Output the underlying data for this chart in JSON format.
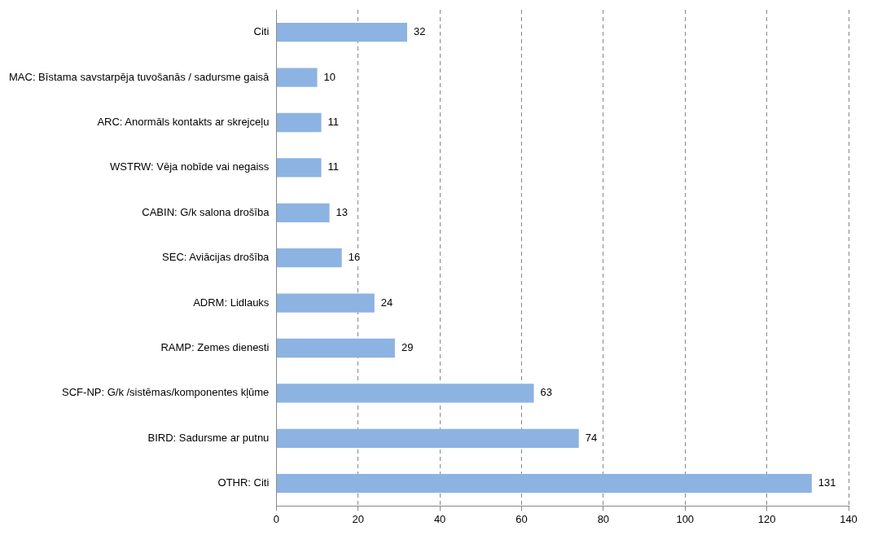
{
  "chart_data": {
    "type": "bar",
    "orientation": "horizontal",
    "categories": [
      "Citi",
      "MAC: Bīstama savstarpēja tuvošanās / sadursme gaisā",
      "ARC: Anormāls kontakts ar skrejceļu",
      "WSTRW: Vēja nobīde vai negaiss",
      "CABIN: G/k salona drošība",
      "SEC: Aviācijas drošība",
      "ADRM: Lidlauks",
      "RAMP: Zemes dienesti",
      "SCF-NP: G/k /sistēmas/komponentes kļūme",
      "BIRD: Sadursme ar putnu",
      "OTHR: Citi"
    ],
    "values": [
      32,
      10,
      11,
      11,
      13,
      16,
      24,
      29,
      63,
      74,
      131
    ],
    "color": "#8db3e2",
    "xlim": [
      0,
      140
    ],
    "xticks": [
      0,
      20,
      40,
      60,
      80,
      100,
      120,
      140
    ],
    "grid": "x",
    "data_labels": true,
    "legend": false
  }
}
